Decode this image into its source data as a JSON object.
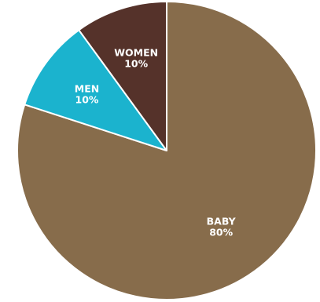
{
  "chart_data": {
    "type": "pie",
    "slices": [
      {
        "label": "BABY",
        "value": 80,
        "percent_label": "80%",
        "color": "#876C4B"
      },
      {
        "label": "MEN",
        "value": 10,
        "percent_label": "10%",
        "color": "#1BB3CE"
      },
      {
        "label": "WOMEN",
        "value": 10,
        "percent_label": "10%",
        "color": "#55322A"
      }
    ],
    "start_angle_deg": 0,
    "direction": "clockwise",
    "legend": "none",
    "labels_inside": true
  }
}
